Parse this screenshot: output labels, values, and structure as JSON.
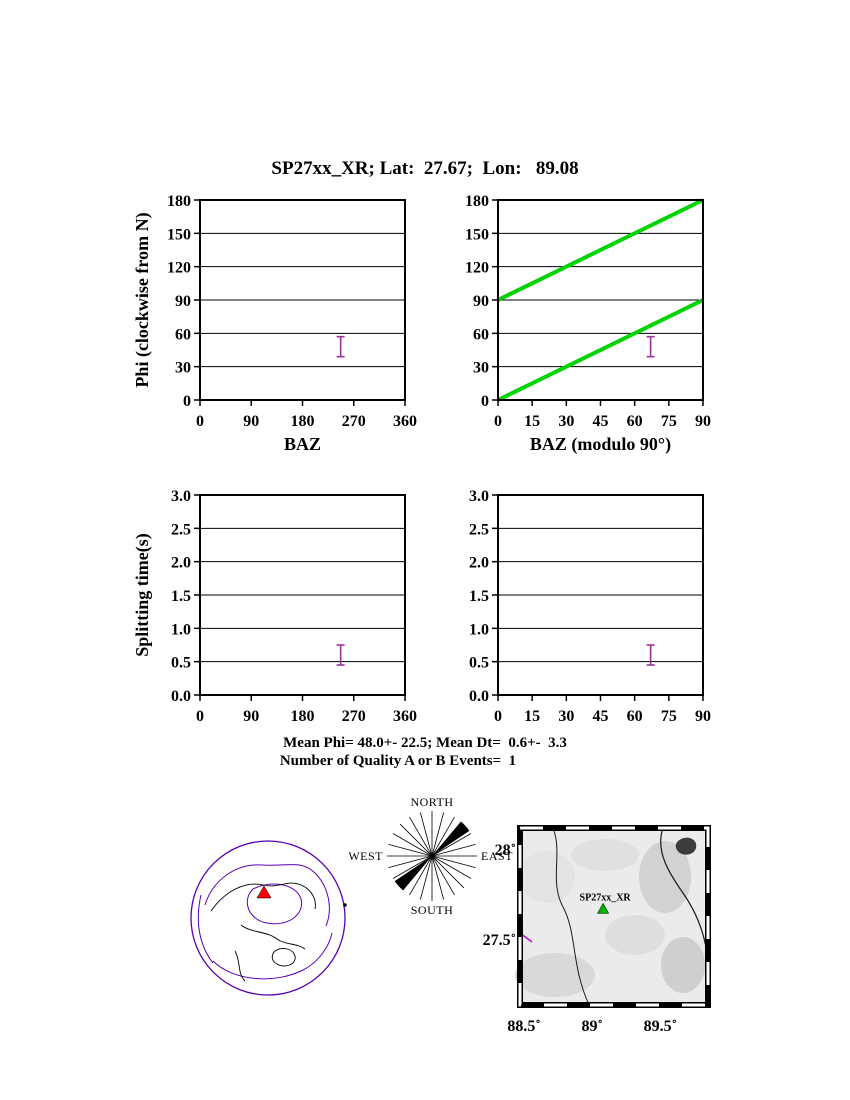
{
  "page": {
    "title": "SP27xx_XR; Lat:  27.67;  Lon:   89.08"
  },
  "stats": {
    "line1": "Mean Phi= 48.0+- 22.5; Mean Dt=  0.6+-  3.3",
    "line2": "Number of Quality A or B Events=  1"
  },
  "colors": {
    "errorbar": "#993399",
    "reference_line": "#00d400",
    "frame": "#000000",
    "globe_outline": "#5a00b4",
    "globe_station": "#ff0000",
    "map_station": "#00b400",
    "map_purple_mark": "#cc00cc"
  },
  "chart_data": [
    {
      "id": "phi_vs_baz",
      "type": "scatter",
      "xlabel": "BAZ",
      "ylabel": "Phi (clockwise from N)",
      "xlim": [
        0,
        360
      ],
      "ylim": [
        0,
        180
      ],
      "xticks": [
        0,
        90,
        180,
        270,
        360
      ],
      "xtick_labels": [
        "0",
        "90",
        "180",
        "270",
        "360"
      ],
      "yticks": [
        0,
        30,
        60,
        90,
        120,
        150,
        180
      ],
      "ytick_labels": [
        "0",
        "30",
        "60",
        "90",
        "120",
        "150",
        "180"
      ],
      "grid": "horizontal",
      "points": [
        {
          "x": 247,
          "y": 48,
          "yerr": 9
        }
      ]
    },
    {
      "id": "phi_vs_baz_mod90",
      "type": "scatter",
      "xlabel": "BAZ (modulo 90°)",
      "ylabel": "",
      "xlim": [
        0,
        90
      ],
      "ylim": [
        0,
        180
      ],
      "xticks": [
        0,
        15,
        30,
        45,
        60,
        75,
        90
      ],
      "xtick_labels": [
        "0",
        "15",
        "30",
        "45",
        "60",
        "75",
        "90"
      ],
      "yticks": [
        0,
        30,
        60,
        90,
        120,
        150,
        180
      ],
      "ytick_labels": [
        "0",
        "30",
        "60",
        "90",
        "120",
        "150",
        "180"
      ],
      "grid": "horizontal",
      "lines": [
        {
          "x1": 0,
          "y1": 0,
          "x2": 90,
          "y2": 90
        },
        {
          "x1": 0,
          "y1": 90,
          "x2": 90,
          "y2": 180
        }
      ],
      "points": [
        {
          "x": 67,
          "y": 48,
          "yerr": 9
        }
      ]
    },
    {
      "id": "dt_vs_baz",
      "type": "scatter",
      "xlabel": "",
      "ylabel": "Splitting time(s)",
      "xlim": [
        0,
        360
      ],
      "ylim": [
        0,
        3
      ],
      "xticks": [
        0,
        90,
        180,
        270,
        360
      ],
      "xtick_labels": [
        "0",
        "90",
        "180",
        "270",
        "360"
      ],
      "yticks": [
        0,
        0.5,
        1,
        1.5,
        2,
        2.5,
        3
      ],
      "ytick_labels": [
        "0.0",
        "0.5",
        "1.0",
        "1.5",
        "2.0",
        "2.5",
        "3.0"
      ],
      "grid": "horizontal",
      "points": [
        {
          "x": 247,
          "y": 0.6,
          "yerr": 0.15
        }
      ]
    },
    {
      "id": "dt_vs_baz_mod90",
      "type": "scatter",
      "xlabel": "",
      "ylabel": "",
      "xlim": [
        0,
        90
      ],
      "ylim": [
        0,
        3
      ],
      "xticks": [
        0,
        15,
        30,
        45,
        60,
        75,
        90
      ],
      "xtick_labels": [
        "0",
        "15",
        "30",
        "45",
        "60",
        "75",
        "90"
      ],
      "yticks": [
        0,
        0.5,
        1,
        1.5,
        2,
        2.5,
        3
      ],
      "ytick_labels": [
        "0.0",
        "0.5",
        "1.0",
        "1.5",
        "2.0",
        "2.5",
        "3.0"
      ],
      "grid": "horizontal",
      "points": [
        {
          "x": 67,
          "y": 0.6,
          "yerr": 0.15
        }
      ]
    },
    {
      "id": "backazimuth_rose",
      "type": "rose",
      "labels": {
        "north": "NORTH",
        "south": "SOUTH",
        "east": "EAST",
        "west": "WEST"
      },
      "spoke_step_deg": 15,
      "wedges": [
        {
          "azimuth_deg": 48,
          "halfwidth_deg": 8
        },
        {
          "azimuth_deg": 228,
          "halfwidth_deg": 8
        }
      ]
    },
    {
      "id": "station_map",
      "type": "map",
      "xticks": [
        {
          "value": 88.5,
          "label": "88.5˚"
        },
        {
          "value": 89.0,
          "label": "89˚"
        },
        {
          "value": 89.5,
          "label": "89.5˚"
        }
      ],
      "yticks": [
        {
          "value": 28.0,
          "label": "28˚"
        },
        {
          "value": 27.5,
          "label": "27.5˚"
        }
      ],
      "station": {
        "label": "SP27xx_XR",
        "lon": 89.08,
        "lat": 27.67
      }
    },
    {
      "id": "global_event_map",
      "type": "globe",
      "station_marker": "red-triangle"
    }
  ]
}
